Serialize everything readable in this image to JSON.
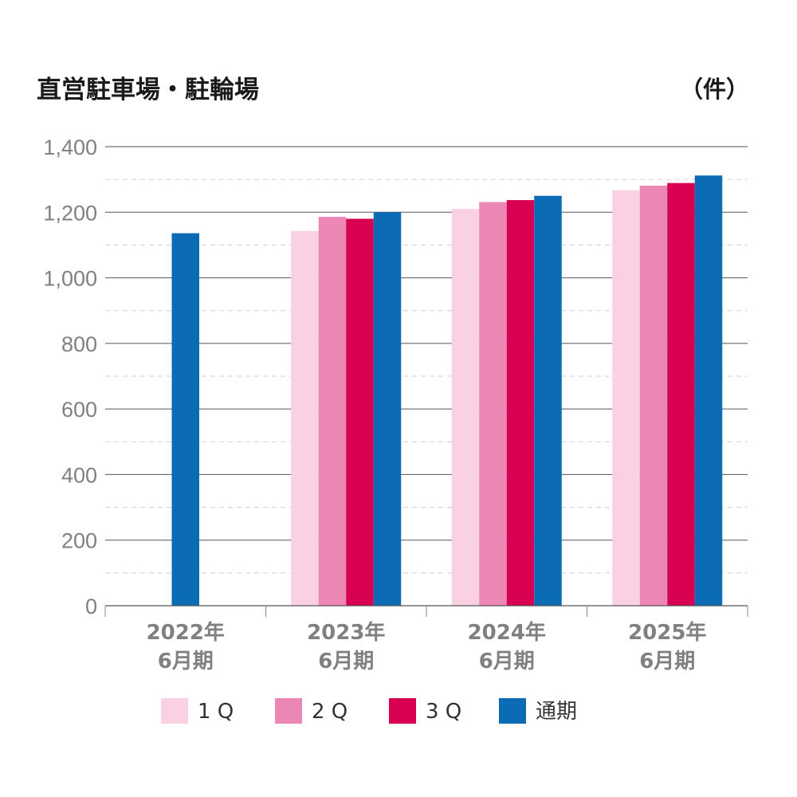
{
  "chart_data": {
    "type": "bar",
    "title": "直営駐車場・駐輪場",
    "unit": "（件）",
    "categories": [
      [
        "2022年",
        "6月期"
      ],
      [
        "2023年",
        "6月期"
      ],
      [
        "2024年",
        "6月期"
      ],
      [
        "2025年",
        "6月期"
      ]
    ],
    "series": [
      {
        "name": "1Q",
        "legend_label": "1 Q",
        "color": "#f9d1e2",
        "values": [
          null,
          1143,
          1210,
          1267
        ]
      },
      {
        "name": "2Q",
        "legend_label": "2 Q",
        "color": "#ec87b5",
        "values": [
          null,
          1186,
          1231,
          1281
        ]
      },
      {
        "name": "3Q",
        "legend_label": "3 Q",
        "color": "#d80051",
        "values": [
          null,
          1180,
          1237,
          1289
        ]
      },
      {
        "name": "通期",
        "legend_label": "通期",
        "color": "#0b6cb5",
        "values": [
          1136,
          1200,
          1250,
          1312
        ]
      }
    ],
    "yticks": [
      "0",
      "200",
      "400",
      "600",
      "800",
      "1,000",
      "1,200",
      "1,400"
    ],
    "ylim": [
      0,
      1400
    ],
    "grid": "solid major lines every 200, dashed minor lines every 100",
    "legend_position": "bottom"
  }
}
